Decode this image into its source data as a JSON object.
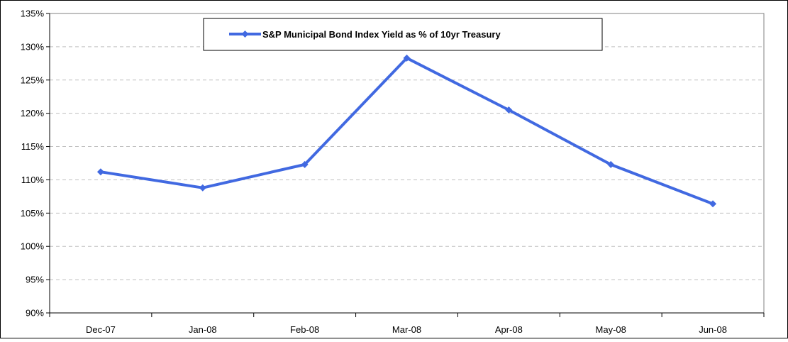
{
  "chart_data": {
    "type": "line",
    "title": "",
    "xlabel": "",
    "ylabel": "",
    "categories": [
      "Dec-07",
      "Jan-08",
      "Feb-08",
      "Mar-08",
      "Apr-08",
      "May-08",
      "Jun-08"
    ],
    "series": [
      {
        "name": "S&P Municipal Bond Index Yield as % of 10yr Treasury",
        "values": [
          111.2,
          108.8,
          112.3,
          128.3,
          120.5,
          112.3,
          106.4
        ],
        "color": "#4169E1"
      }
    ],
    "ylim": [
      90,
      135
    ],
    "yticks": [
      "90%",
      "95%",
      "100%",
      "105%",
      "110%",
      "115%",
      "120%",
      "125%",
      "130%",
      "135%"
    ],
    "grid": "horizontal-dashed",
    "legend_position": "top-center"
  }
}
